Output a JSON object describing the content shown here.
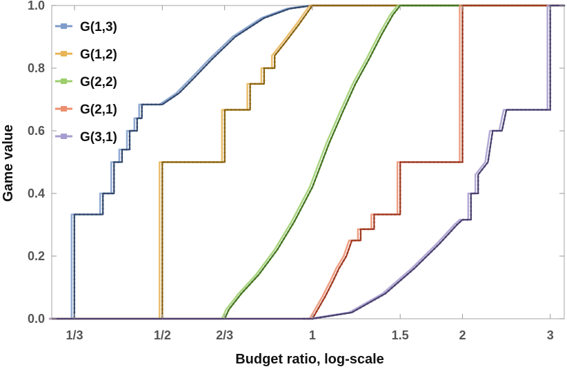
{
  "chart_data": {
    "type": "line",
    "title": "",
    "xlabel": "Budget ratio, log-scale",
    "ylabel": "Game value",
    "xscale": "log",
    "xlim": [
      0.3,
      3.2
    ],
    "ylim": [
      0,
      1
    ],
    "x_ticks": [
      {
        "value": 0.3333,
        "label": "1/3"
      },
      {
        "value": 0.5,
        "label": "1/2"
      },
      {
        "value": 0.6667,
        "label": "2/3"
      },
      {
        "value": 1,
        "label": "1"
      },
      {
        "value": 1.5,
        "label": "1.5"
      },
      {
        "value": 2,
        "label": "2"
      },
      {
        "value": 3,
        "label": "3"
      }
    ],
    "y_ticks": [
      {
        "value": 0,
        "label": "0.0"
      },
      {
        "value": 0.2,
        "label": "0.2"
      },
      {
        "value": 0.4,
        "label": "0.4"
      },
      {
        "value": 0.6,
        "label": "0.6"
      },
      {
        "value": 0.8,
        "label": "0.8"
      },
      {
        "value": 1,
        "label": "1.0"
      }
    ],
    "legend_position": "top-left",
    "series": [
      {
        "name": "G(1,3)",
        "color": "#7f9ccb",
        "dark_color": "#344a6e",
        "kind": "step",
        "points": [
          [
            0.3,
            0
          ],
          [
            0.333,
            0
          ],
          [
            0.333,
            0.333
          ],
          [
            0.38,
            0.333
          ],
          [
            0.38,
            0.4
          ],
          [
            0.4,
            0.4
          ],
          [
            0.4,
            0.5
          ],
          [
            0.415,
            0.5
          ],
          [
            0.415,
            0.54
          ],
          [
            0.43,
            0.54
          ],
          [
            0.43,
            0.6
          ],
          [
            0.445,
            0.6
          ],
          [
            0.445,
            0.64
          ],
          [
            0.455,
            0.64
          ],
          [
            0.455,
            0.684
          ],
          [
            0.5,
            0.684
          ],
          [
            0.54,
            0.72
          ],
          [
            0.58,
            0.77
          ],
          [
            0.63,
            0.83
          ],
          [
            0.7,
            0.9
          ],
          [
            0.8,
            0.96
          ],
          [
            0.9,
            0.99
          ],
          [
            1,
            1
          ],
          [
            3.2,
            1
          ]
        ]
      },
      {
        "name": "G(1,2)",
        "color": "#e8b456",
        "dark_color": "#8a6410",
        "kind": "step",
        "points": [
          [
            0.3,
            0
          ],
          [
            0.5,
            0
          ],
          [
            0.5,
            0.5
          ],
          [
            0.667,
            0.5
          ],
          [
            0.667,
            0.667
          ],
          [
            0.75,
            0.667
          ],
          [
            0.75,
            0.75
          ],
          [
            0.8,
            0.75
          ],
          [
            0.8,
            0.8
          ],
          [
            0.84,
            0.8
          ],
          [
            0.84,
            0.84
          ],
          [
            0.88,
            0.88
          ],
          [
            0.94,
            0.94
          ],
          [
            1,
            1
          ],
          [
            3.2,
            1
          ]
        ]
      },
      {
        "name": "G(2,2)",
        "color": "#9ccf6c",
        "dark_color": "#44751f",
        "kind": "smooth",
        "points": [
          [
            0.3,
            0
          ],
          [
            0.667,
            0
          ],
          [
            0.68,
            0.03
          ],
          [
            0.72,
            0.08
          ],
          [
            0.78,
            0.14
          ],
          [
            0.85,
            0.22
          ],
          [
            0.92,
            0.31
          ],
          [
            1,
            0.42
          ],
          [
            1.08,
            0.56
          ],
          [
            1.15,
            0.66
          ],
          [
            1.22,
            0.75
          ],
          [
            1.3,
            0.83
          ],
          [
            1.38,
            0.91
          ],
          [
            1.45,
            0.97
          ],
          [
            1.5,
            1
          ],
          [
            3.2,
            1
          ]
        ]
      },
      {
        "name": "G(2,1)",
        "color": "#ec8f6f",
        "dark_color": "#a03a22",
        "kind": "step",
        "points": [
          [
            0.3,
            0
          ],
          [
            1,
            0
          ],
          [
            1.06,
            0.07
          ],
          [
            1.1,
            0.12
          ],
          [
            1.13,
            0.16
          ],
          [
            1.17,
            0.2
          ],
          [
            1.2,
            0.25
          ],
          [
            1.25,
            0.25
          ],
          [
            1.25,
            0.286
          ],
          [
            1.33,
            0.286
          ],
          [
            1.33,
            0.333
          ],
          [
            1.5,
            0.333
          ],
          [
            1.5,
            0.5
          ],
          [
            2,
            0.5
          ],
          [
            2,
            1
          ],
          [
            3.2,
            1
          ]
        ]
      },
      {
        "name": "G(3,1)",
        "color": "#a79ccf",
        "dark_color": "#4b416f",
        "kind": "step",
        "points": [
          [
            0.3,
            0
          ],
          [
            1,
            0
          ],
          [
            1.2,
            0.02
          ],
          [
            1.4,
            0.08
          ],
          [
            1.6,
            0.16
          ],
          [
            1.8,
            0.24
          ],
          [
            1.95,
            0.3
          ],
          [
            2,
            0.316
          ],
          [
            2.08,
            0.316
          ],
          [
            2.08,
            0.4
          ],
          [
            2.15,
            0.4
          ],
          [
            2.15,
            0.46
          ],
          [
            2.25,
            0.5
          ],
          [
            2.3,
            0.6
          ],
          [
            2.4,
            0.6
          ],
          [
            2.45,
            0.667
          ],
          [
            3,
            0.667
          ],
          [
            3,
            1
          ],
          [
            3.2,
            1
          ]
        ]
      }
    ]
  }
}
